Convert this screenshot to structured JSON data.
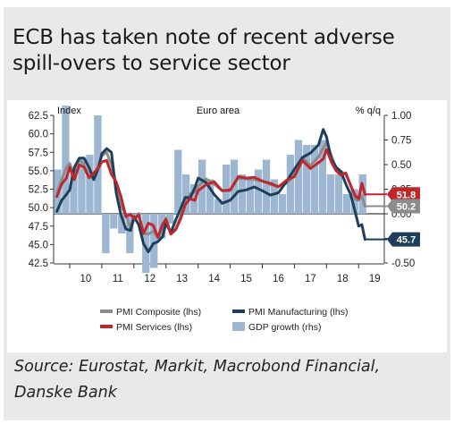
{
  "title_lines": [
    "ECB has taken note of recent adverse",
    "spill-overs to service sector"
  ],
  "source_lines": [
    "Source: Eurostat, Markit, Macrobond Financial,",
    "Danske Bank"
  ],
  "colors": {
    "composite": "#8c8c8c",
    "manufacturing": "#1d3f5c",
    "services": "#c0272d",
    "gdp": "#9db7d3",
    "background": "#e9e9e9"
  },
  "chart_data": {
    "type": "line",
    "title": "Euro area",
    "left_axis_label": "Index",
    "right_axis_label": "% q/q",
    "left_ticks": [
      "62.5",
      "60.0",
      "57.5",
      "55.0",
      "52.5",
      "50.0",
      "47.5",
      "45.0",
      "42.5"
    ],
    "right_ticks": [
      "1.00",
      "0.75",
      "0.50",
      "0.25",
      "0.00",
      "-0.25",
      "-0.50"
    ],
    "ylim_left": [
      42.5,
      62.5
    ],
    "ylim_right": [
      -0.5,
      1.0
    ],
    "x_labels": [
      "10",
      "11",
      "12",
      "13",
      "14",
      "15",
      "16",
      "17",
      "18",
      "19"
    ],
    "xlim": [
      2009.5,
      2019.8
    ],
    "legend": [
      "PMI Composite (lhs)",
      "PMI Manufacturing (lhs)",
      "PMI Services (lhs)",
      "GDP growth (rhs)"
    ],
    "end_labels": [
      "51.8",
      "50.2",
      "45.7"
    ],
    "gdp_growth": {
      "name": "GDP growth (rhs)",
      "x": [
        2009.625,
        2009.875,
        2010.125,
        2010.375,
        2010.625,
        2010.875,
        2011.125,
        2011.375,
        2011.625,
        2011.875,
        2012.125,
        2012.375,
        2012.625,
        2012.875,
        2013.125,
        2013.375,
        2013.625,
        2013.875,
        2014.125,
        2014.375,
        2014.625,
        2014.875,
        2015.125,
        2015.375,
        2015.625,
        2015.875,
        2016.125,
        2016.375,
        2016.625,
        2016.875,
        2017.125,
        2017.375,
        2017.625,
        2017.875,
        2018.125,
        2018.375,
        2018.625,
        2018.875,
        2019.125
      ],
      "values": [
        0.45,
        1.1,
        0.45,
        0.55,
        0.6,
        1.0,
        -0.4,
        -0.15,
        -0.2,
        -0.4,
        -0.05,
        -0.6,
        -0.55,
        -0.25,
        -0.1,
        0.65,
        0.4,
        0.3,
        0.55,
        0.35,
        0.15,
        0.5,
        0.55,
        0.4,
        0.35,
        0.45,
        0.55,
        0.35,
        0.2,
        0.6,
        0.75,
        0.7,
        0.7,
        0.75,
        0.4,
        0.4,
        0.2,
        0.25,
        0.4
      ]
    },
    "series": [
      {
        "name": "PMI Composite (lhs)",
        "x": [
          2009.6,
          2009.75,
          2009.9,
          2010.0,
          2010.15,
          2010.3,
          2010.45,
          2010.6,
          2010.75,
          2010.9,
          2011.0,
          2011.15,
          2011.3,
          2011.45,
          2011.6,
          2011.75,
          2011.9,
          2012.0,
          2012.15,
          2012.3,
          2012.45,
          2012.6,
          2012.75,
          2012.9,
          2013.0,
          2013.15,
          2013.3,
          2013.45,
          2013.6,
          2013.75,
          2013.9,
          2014.0,
          2014.25,
          2014.5,
          2014.75,
          2015.0,
          2015.25,
          2015.5,
          2015.75,
          2016.0,
          2016.25,
          2016.5,
          2016.75,
          2017.0,
          2017.25,
          2017.5,
          2017.75,
          2017.9,
          2018.0,
          2018.15,
          2018.3,
          2018.45,
          2018.6,
          2018.75,
          2018.9,
          2019.0,
          2019.1,
          2019.2
        ],
        "values": [
          52.0,
          53.8,
          55.5,
          56.0,
          54.2,
          56.5,
          55.9,
          54.0,
          54.2,
          55.8,
          57.0,
          57.5,
          55.8,
          53.2,
          50.3,
          49.0,
          47.2,
          48.3,
          49.2,
          46.5,
          46.4,
          46.8,
          45.9,
          47.2,
          48.6,
          46.5,
          47.1,
          48.7,
          50.4,
          51.9,
          52.1,
          52.9,
          53.9,
          53.2,
          52.3,
          52.3,
          54.0,
          53.9,
          53.8,
          53.6,
          53.1,
          52.9,
          53.3,
          54.4,
          56.8,
          55.7,
          56.9,
          58.1,
          58.8,
          57.1,
          55.3,
          54.9,
          54.5,
          53.1,
          51.1,
          51.0,
          51.6,
          50.2
        ]
      },
      {
        "name": "PMI Manufacturing (lhs)",
        "x": [
          2009.6,
          2009.75,
          2009.9,
          2010.0,
          2010.15,
          2010.3,
          2010.45,
          2010.6,
          2010.75,
          2010.9,
          2011.0,
          2011.15,
          2011.3,
          2011.45,
          2011.6,
          2011.75,
          2011.9,
          2012.0,
          2012.15,
          2012.3,
          2012.45,
          2012.6,
          2012.75,
          2012.9,
          2013.0,
          2013.15,
          2013.3,
          2013.45,
          2013.6,
          2013.75,
          2013.9,
          2014.0,
          2014.25,
          2014.5,
          2014.75,
          2015.0,
          2015.25,
          2015.5,
          2015.75,
          2016.0,
          2016.25,
          2016.5,
          2016.75,
          2017.0,
          2017.25,
          2017.5,
          2017.75,
          2017.9,
          2018.0,
          2018.15,
          2018.3,
          2018.45,
          2018.6,
          2018.75,
          2018.9,
          2019.0,
          2019.1,
          2019.2
        ],
        "values": [
          49.5,
          51.0,
          51.8,
          52.4,
          55.5,
          56.7,
          56.7,
          55.5,
          53.8,
          55.4,
          57.3,
          58.0,
          57.5,
          52.0,
          49.0,
          47.1,
          46.9,
          48.8,
          47.7,
          45.1,
          44.0,
          45.1,
          45.4,
          46.1,
          47.9,
          46.6,
          48.3,
          49.8,
          51.4,
          51.3,
          52.7,
          54.0,
          53.4,
          51.8,
          50.6,
          51.0,
          52.2,
          52.4,
          52.8,
          52.3,
          51.7,
          52.0,
          53.5,
          55.2,
          56.8,
          57.4,
          58.5,
          60.6,
          59.6,
          56.6,
          55.5,
          54.9,
          53.2,
          51.8,
          49.3,
          47.5,
          47.7,
          45.7
        ]
      },
      {
        "name": "PMI Services (lhs)",
        "x": [
          2009.6,
          2009.75,
          2009.9,
          2010.0,
          2010.15,
          2010.3,
          2010.45,
          2010.6,
          2010.75,
          2010.9,
          2011.0,
          2011.15,
          2011.3,
          2011.45,
          2011.6,
          2011.75,
          2011.9,
          2012.0,
          2012.15,
          2012.3,
          2012.45,
          2012.6,
          2012.75,
          2012.9,
          2013.0,
          2013.15,
          2013.3,
          2013.45,
          2013.6,
          2013.75,
          2013.9,
          2014.0,
          2014.25,
          2014.5,
          2014.75,
          2015.0,
          2015.25,
          2015.5,
          2015.75,
          2016.0,
          2016.25,
          2016.5,
          2016.75,
          2017.0,
          2017.25,
          2017.5,
          2017.75,
          2017.9,
          2018.0,
          2018.15,
          2018.3,
          2018.45,
          2018.6,
          2018.75,
          2018.9,
          2019.0,
          2019.1,
          2019.2
        ],
        "values": [
          51.5,
          53.2,
          54.0,
          55.5,
          53.8,
          55.8,
          55.5,
          54.1,
          54.7,
          55.4,
          56.2,
          56.4,
          54.5,
          53.5,
          51.5,
          48.8,
          49.1,
          48.5,
          49.0,
          46.5,
          47.9,
          47.6,
          46.0,
          47.8,
          48.4,
          46.4,
          47.0,
          48.4,
          50.4,
          51.2,
          51.0,
          52.3,
          53.1,
          53.5,
          52.3,
          52.4,
          54.2,
          54.0,
          54.1,
          53.6,
          53.3,
          52.8,
          53.7,
          54.2,
          56.4,
          55.3,
          56.1,
          56.6,
          57.9,
          56.2,
          55.0,
          54.4,
          54.7,
          53.0,
          51.6,
          51.2,
          53.3,
          51.8
        ]
      }
    ]
  }
}
